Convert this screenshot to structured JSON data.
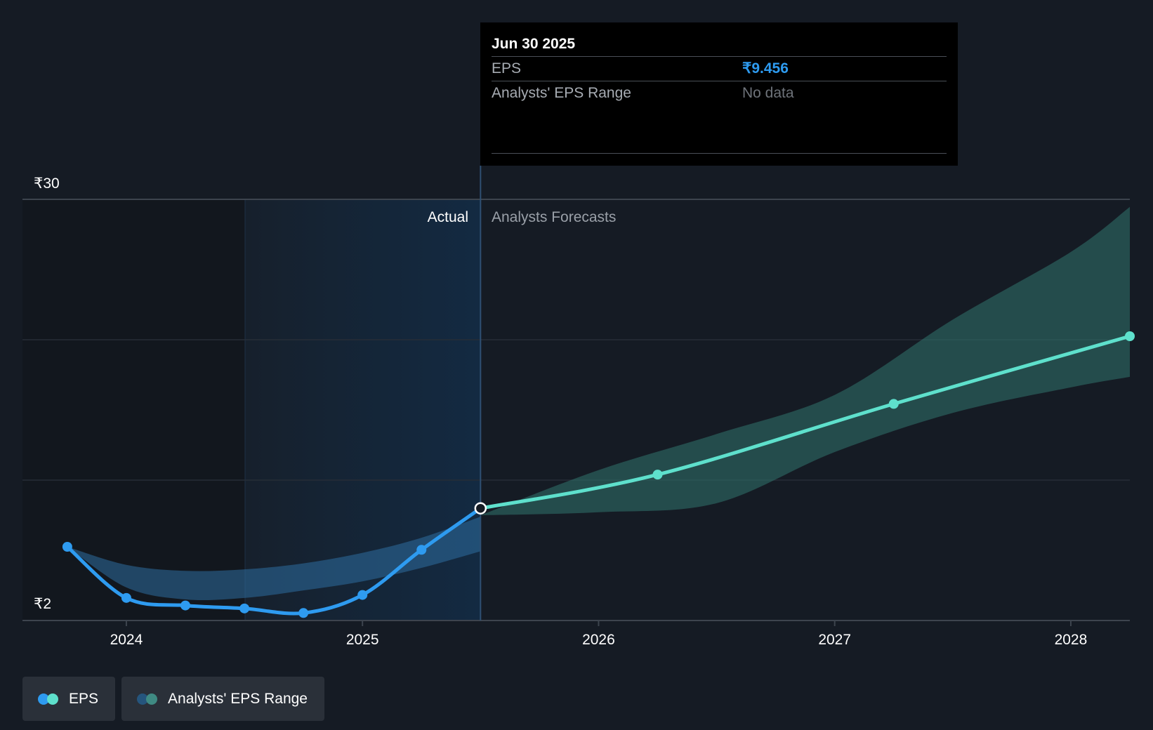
{
  "chart_data": {
    "type": "line",
    "y_axis": {
      "min_label": "₹2",
      "max_label": "₹30",
      "min": 2,
      "max": 30
    },
    "x_ticks": [
      {
        "label": "2024",
        "t": 2024.0
      },
      {
        "label": "2025",
        "t": 2025.0
      },
      {
        "label": "2026",
        "t": 2026.0
      },
      {
        "label": "2027",
        "t": 2027.0
      },
      {
        "label": "2028",
        "t": 2028.0
      }
    ],
    "x_range": [
      2023.56,
      2028.25
    ],
    "region_labels": {
      "actual": "Actual",
      "forecast": "Analysts Forecasts"
    },
    "divider_t": 2025.5,
    "series": [
      {
        "name": "EPS",
        "kind": "actual",
        "color": "#2e9bf0",
        "points": [
          {
            "t": 2023.75,
            "v": 6.9
          },
          {
            "t": 2024.0,
            "v": 3.5
          },
          {
            "t": 2024.25,
            "v": 3.0
          },
          {
            "t": 2024.5,
            "v": 2.8
          },
          {
            "t": 2024.75,
            "v": 2.5
          },
          {
            "t": 2025.0,
            "v": 3.7
          },
          {
            "t": 2025.25,
            "v": 6.7
          },
          {
            "t": 2025.5,
            "v": 9.456
          }
        ]
      },
      {
        "name": "EPS",
        "kind": "forecast",
        "color": "#5ee0cc",
        "points": [
          {
            "t": 2025.5,
            "v": 9.456
          },
          {
            "t": 2026.25,
            "v": 11.7
          },
          {
            "t": 2027.25,
            "v": 16.4
          },
          {
            "t": 2028.25,
            "v": 20.9
          }
        ]
      }
    ],
    "ranges": [
      {
        "name": "Analysts' EPS Range",
        "kind": "actual",
        "color": "#2e6ea0",
        "t": [
          2023.75,
          2024.0,
          2024.25,
          2024.5,
          2024.75,
          2025.0,
          2025.25,
          2025.5
        ],
        "low": [
          6.9,
          4.2,
          3.4,
          3.5,
          4.0,
          4.6,
          5.5,
          6.6
        ],
        "high": [
          6.9,
          5.7,
          5.3,
          5.4,
          5.8,
          6.5,
          7.5,
          8.9
        ]
      },
      {
        "name": "Analysts' EPS Range",
        "kind": "forecast",
        "color": "#2f6e68",
        "t": [
          2025.5,
          2026.0,
          2026.5,
          2027.0,
          2027.5,
          2028.0,
          2028.25
        ],
        "low": [
          9.0,
          9.2,
          9.8,
          13.2,
          15.8,
          17.5,
          18.2
        ],
        "high": [
          9.0,
          12.0,
          14.4,
          17.0,
          22.0,
          26.5,
          29.5
        ]
      }
    ],
    "highlight": {
      "t": 2025.5,
      "v": 9.456
    }
  },
  "tooltip": {
    "date": "Jun 30 2025",
    "rows": [
      {
        "label": "EPS",
        "value": "₹9.456"
      },
      {
        "label": "Analysts' EPS Range",
        "value": "No data"
      }
    ]
  },
  "legend": [
    {
      "label": "EPS",
      "colors": [
        "#2e9bf0",
        "#5ee0cc"
      ]
    },
    {
      "label": "Analysts' EPS Range",
      "colors": [
        "#25557d",
        "#3f8a83"
      ]
    }
  ]
}
